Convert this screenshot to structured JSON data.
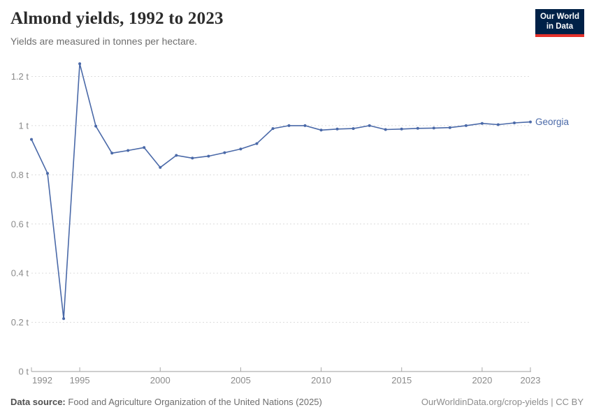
{
  "header": {
    "title": "Almond yields, 1992 to 2023",
    "subtitle": "Yields are measured in tonnes per hectare."
  },
  "logo": {
    "line1": "Our World",
    "line2": "in Data",
    "bg_color": "#002147",
    "accent_color": "#e5322b"
  },
  "chart_data": {
    "type": "line",
    "title": "Almond yields, 1992 to 2023",
    "unit": "tonnes per hectare",
    "xlabel": "",
    "ylabel": "",
    "xlim": [
      1992,
      2023
    ],
    "ylim": [
      0,
      1.3
    ],
    "grid": "horizontal-dashed",
    "legend_position": "end-of-line-label",
    "x": [
      1992,
      1993,
      1994,
      1995,
      1996,
      1997,
      1998,
      1999,
      2000,
      2001,
      2002,
      2003,
      2004,
      2005,
      2006,
      2007,
      2008,
      2009,
      2010,
      2011,
      2012,
      2013,
      2014,
      2015,
      2016,
      2017,
      2018,
      2019,
      2020,
      2021,
      2022,
      2023
    ],
    "series": [
      {
        "name": "Georgia",
        "color": "#4a69a8",
        "values": [
          0.944,
          0.806,
          0.215,
          1.252,
          0.998,
          0.888,
          0.899,
          0.911,
          0.83,
          0.879,
          0.868,
          0.876,
          0.89,
          0.905,
          0.927,
          0.988,
          1.0,
          1.0,
          0.982,
          0.986,
          0.988,
          1.0,
          0.984,
          0.986,
          0.989,
          0.99,
          0.992,
          1.0,
          1.009,
          1.004,
          1.011,
          1.015
        ]
      }
    ],
    "x_ticks": [
      1992,
      1995,
      2000,
      2005,
      2010,
      2015,
      2020,
      2023
    ],
    "y_ticks": [
      0,
      0.2,
      0.4,
      0.6,
      0.8,
      1,
      1.2
    ],
    "y_tick_labels": [
      "0 t",
      "0.2 t",
      "0.4 t",
      "0.6 t",
      "0.8 t",
      "1 t",
      "1.2 t"
    ],
    "colors": {
      "grid_line": "#dcdcdc",
      "axis_line": "#9c9c9c",
      "tick_mark": "#a8a8a8",
      "tick_label": "#8b8b8b"
    }
  },
  "footer": {
    "source_label": "Data source:",
    "source_text": "Food and Agriculture Organization of the United Nations (2025)",
    "credit": "OurWorldinData.org/crop-yields | CC BY"
  }
}
